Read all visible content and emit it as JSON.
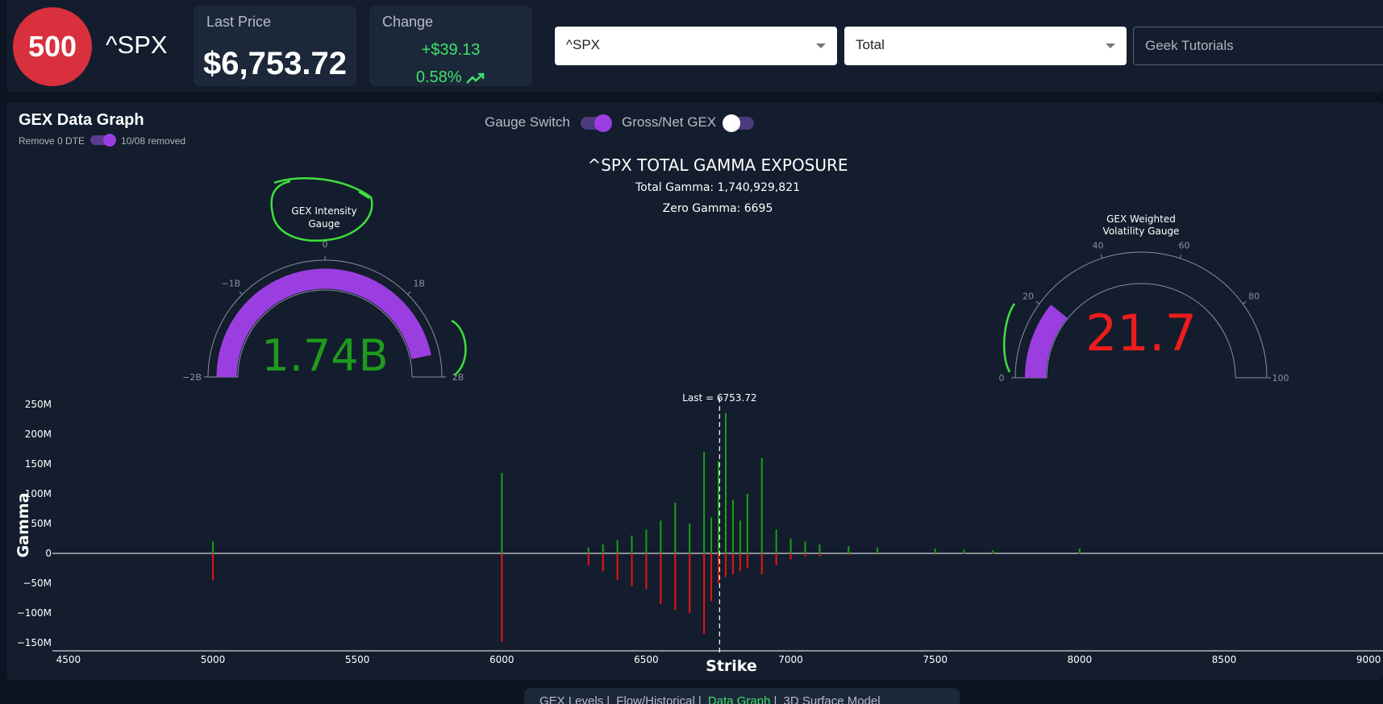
{
  "header": {
    "logo_text": "500",
    "ticker": "^SPX",
    "last_price_label": "Last Price",
    "last_price": "$6,753.72",
    "change_label": "Change",
    "change_abs": "+$39.13",
    "change_pct": "0.58%",
    "symbol_select": "^SPX",
    "type_select": "Total",
    "tutorials": "Geek Tutorials"
  },
  "panel": {
    "title": "GEX Data Graph",
    "remove_dte_label": "Remove 0 DTE",
    "removed_text": "10/08 removed",
    "gauge_switch_label": "Gauge Switch",
    "gross_net_label": "Gross/Net GEX",
    "gauge_switch_on": true,
    "gross_net_on": false
  },
  "chart_title": "^SPX TOTAL GAMMA EXPOSURE",
  "total_gamma_text": "Total Gamma: 1,740,929,821",
  "zero_gamma_text": "Zero Gamma: 6695",
  "intensity_gauge": {
    "title_line1": "GEX Intensity",
    "title_line2": "Gauge",
    "value_text": "1.74B",
    "value": 1.74,
    "min": -2,
    "max": 2,
    "ticks": [
      "−2B",
      "−1B",
      "0",
      "1B",
      "2B"
    ],
    "bar_color": "#9b3ee0",
    "value_color": "#1e9a1e"
  },
  "vol_gauge": {
    "title_line1": "GEX Weighted",
    "title_line2": "Volatility Gauge",
    "value_text": "21.7",
    "value": 21.7,
    "min": 0,
    "max": 100,
    "ticks": [
      "0",
      "20",
      "40",
      "60",
      "80",
      "100"
    ],
    "bar_color": "#9b3ee0",
    "value_color": "#ee1c1c"
  },
  "bottom_nav": [
    "GEX Levels",
    "Flow/Historical",
    "Data Graph",
    "3D Surface Model"
  ],
  "bottom_nav_active": "Data Graph",
  "chart_data": {
    "type": "bar",
    "xlabel": "Strike",
    "ylabel": "Gamma",
    "xlim": [
      4450,
      9050
    ],
    "ylim": [
      -150,
      260
    ],
    "y_unit": "M",
    "x_ticks": [
      4500,
      5000,
      5500,
      6000,
      6500,
      7000,
      7500,
      8000,
      8500,
      9000
    ],
    "y_ticks": [
      {
        "v": 250,
        "t": "250M"
      },
      {
        "v": 200,
        "t": "200M"
      },
      {
        "v": 150,
        "t": "150M"
      },
      {
        "v": 100,
        "t": "100M"
      },
      {
        "v": 50,
        "t": "50M"
      },
      {
        "v": 0,
        "t": "0"
      },
      {
        "v": -50,
        "t": "−50M"
      },
      {
        "v": -100,
        "t": "−100M"
      },
      {
        "v": -150,
        "t": "−150M"
      }
    ],
    "last_label": "Last = 6753.72",
    "last_value": 6753.72,
    "positive_color": "#15a315",
    "negative_color": "#e81414",
    "strikes": [
      5000,
      6000,
      6300,
      6350,
      6400,
      6450,
      6500,
      6550,
      6600,
      6650,
      6700,
      6725,
      6750,
      6775,
      6800,
      6825,
      6850,
      6900,
      6950,
      7000,
      7050,
      7100,
      7200,
      7300,
      7500,
      7600,
      7700,
      8000
    ],
    "positive": [
      20,
      135,
      10,
      15,
      22,
      30,
      40,
      55,
      85,
      50,
      170,
      60,
      155,
      235,
      90,
      55,
      100,
      160,
      40,
      25,
      20,
      15,
      12,
      10,
      8,
      6,
      5,
      8
    ],
    "negative": [
      -45,
      -148,
      -20,
      -30,
      -45,
      -55,
      -60,
      -85,
      -95,
      -100,
      -135,
      -80,
      -50,
      -40,
      -35,
      -30,
      -25,
      -35,
      -20,
      -10,
      -5,
      -5,
      -3,
      -2,
      -2,
      -1,
      -1,
      -1
    ]
  }
}
